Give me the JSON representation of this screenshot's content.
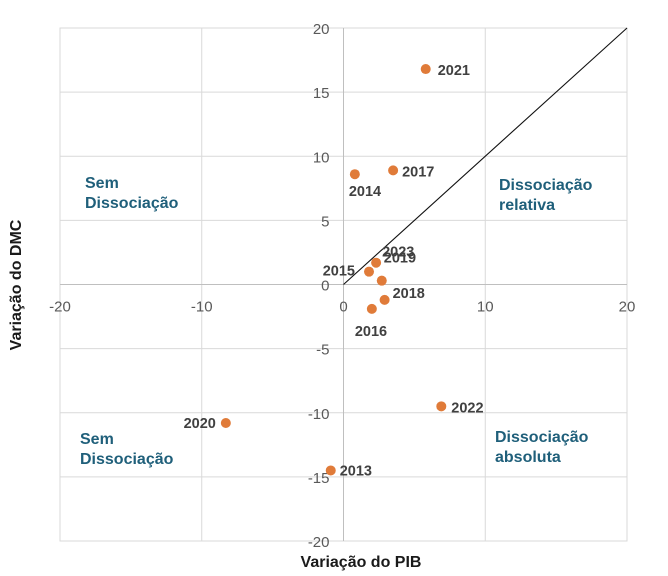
{
  "chart_data": {
    "type": "scatter",
    "xlabel": "Variação do PIB",
    "ylabel": "Variação do DMC",
    "xlim": [
      -20,
      20
    ],
    "ylim": [
      -20,
      20
    ],
    "xticks": [
      -20,
      -10,
      0,
      10,
      20
    ],
    "yticks": [
      -20,
      -15,
      -10,
      -5,
      0,
      5,
      10,
      15,
      20
    ],
    "grid": true,
    "reference_line": {
      "type": "y = x"
    },
    "point_color": "#e07b39",
    "region_color": "#1f5f7a",
    "points": [
      {
        "label": "2013",
        "x": -0.9,
        "y": -14.5
      },
      {
        "label": "2014",
        "x": 0.8,
        "y": 8.6
      },
      {
        "label": "2015",
        "x": 1.8,
        "y": 1.0
      },
      {
        "label": "2016",
        "x": 2.0,
        "y": -1.9
      },
      {
        "label": "2017",
        "x": 3.5,
        "y": 8.9
      },
      {
        "label": "2018",
        "x": 2.9,
        "y": -1.2
      },
      {
        "label": "2019",
        "x": 2.7,
        "y": 0.3
      },
      {
        "label": "2020",
        "x": -8.3,
        "y": -10.8
      },
      {
        "label": "2021",
        "x": 5.8,
        "y": 16.8
      },
      {
        "label": "2022",
        "x": 6.9,
        "y": -9.5
      },
      {
        "label": "2023",
        "x": 2.3,
        "y": 1.7
      }
    ],
    "regions": [
      {
        "lines": [
          "Sem",
          "Dissociação"
        ],
        "position": "upper-left"
      },
      {
        "lines": [
          "Dissociação",
          "relativa"
        ],
        "position": "upper-right"
      },
      {
        "lines": [
          "Sem",
          "Dissociação"
        ],
        "position": "lower-left"
      },
      {
        "lines": [
          "Dissociação",
          "absoluta"
        ],
        "position": "lower-right"
      }
    ]
  }
}
